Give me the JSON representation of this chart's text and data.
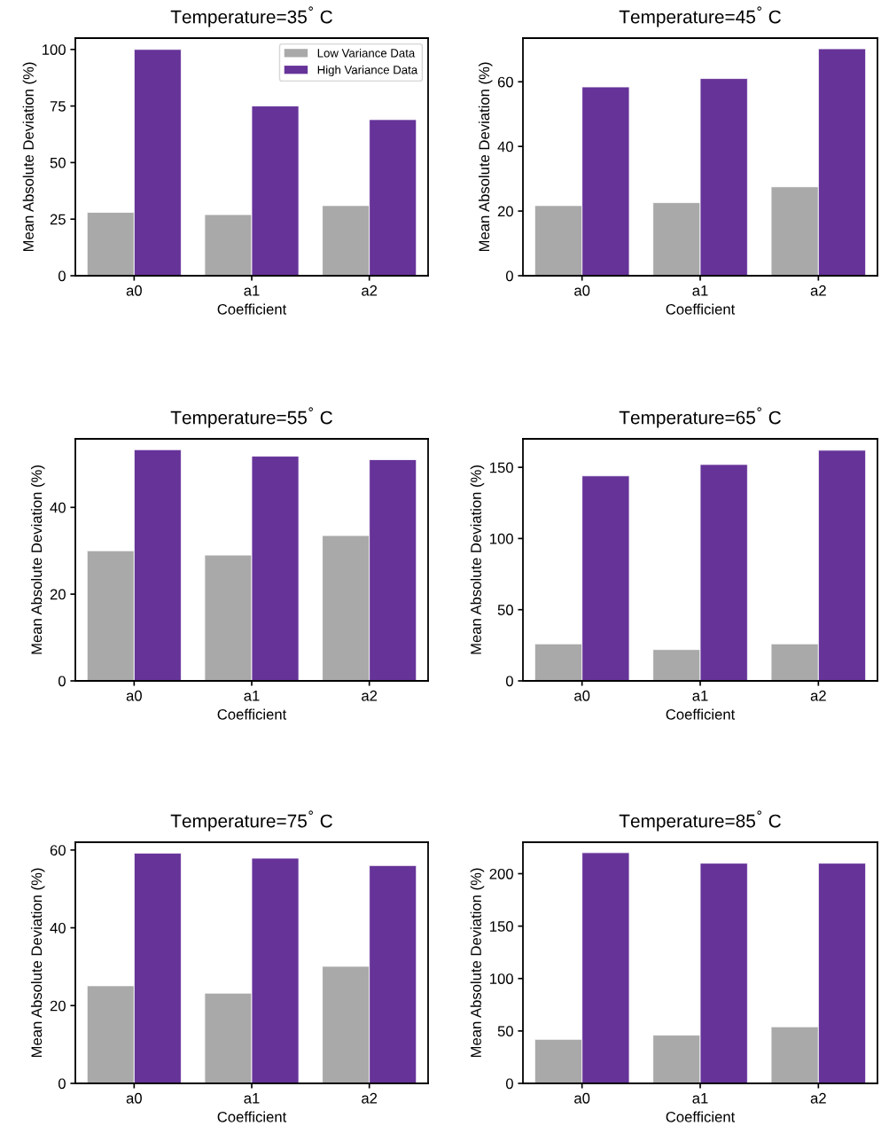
{
  "chart_data": [
    {
      "type": "bar",
      "title": "Temperature=35$^{°}$ C",
      "xlabel": "Coefficient",
      "ylabel": "Mean Absolute Deviation (%)",
      "categories": [
        "a0",
        "a1",
        "a2"
      ],
      "ylim": [
        0,
        105
      ],
      "yticks": [
        0,
        25,
        50,
        75,
        100
      ],
      "legend": "top right",
      "series": [
        {
          "name": "Low Variance Data",
          "color": "#a9a9a9",
          "values": [
            28,
            27,
            31
          ]
        },
        {
          "name": "High Variance Data",
          "color": "#663399",
          "values": [
            100,
            75,
            69
          ]
        }
      ]
    },
    {
      "type": "bar",
      "title": "Temperature=45$^{°}$ C",
      "xlabel": "Coefficient",
      "ylabel": "Mean Absolute Deviation (%)",
      "categories": [
        "a0",
        "a1",
        "a2"
      ],
      "ylim": [
        0,
        73.5
      ],
      "yticks": [
        0,
        20,
        40,
        60
      ],
      "series": [
        {
          "color": "#a9a9a9",
          "values": [
            21.7,
            22.6,
            27.5
          ]
        },
        {
          "color": "#663399",
          "values": [
            58.4,
            61,
            70.2
          ]
        }
      ]
    },
    {
      "type": "bar",
      "title": "Temperature=55$^{°}$ C",
      "xlabel": "Coefficient",
      "ylabel": "Mean Absolute Deviation (%)",
      "categories": [
        "a0",
        "a1",
        "a2"
      ],
      "ylim": [
        0,
        55.8
      ],
      "yticks": [
        0,
        20,
        40
      ],
      "series": [
        {
          "color": "#a9a9a9",
          "values": [
            30,
            29,
            33.5
          ]
        },
        {
          "color": "#663399",
          "values": [
            53.3,
            51.8,
            51
          ]
        }
      ]
    },
    {
      "type": "bar",
      "title": "Temperature=65$^{°}$ C",
      "xlabel": "Coefficient",
      "ylabel": "Mean Absolute Deviation (%)",
      "categories": [
        "a0",
        "a1",
        "a2"
      ],
      "ylim": [
        0,
        170
      ],
      "yticks": [
        0,
        50,
        100,
        150
      ],
      "series": [
        {
          "color": "#a9a9a9",
          "values": [
            26,
            22,
            26
          ]
        },
        {
          "color": "#663399",
          "values": [
            144,
            152,
            162
          ]
        }
      ]
    },
    {
      "type": "bar",
      "title": "Temperature=75$^{°}$ C",
      "xlabel": "Coefficient",
      "ylabel": "Mean Absolute Deviation (%)",
      "categories": [
        "a0",
        "a1",
        "a2"
      ],
      "ylim": [
        0,
        62
      ],
      "yticks": [
        0,
        20,
        40,
        60
      ],
      "series": [
        {
          "color": "#a9a9a9",
          "values": [
            25.1,
            23.2,
            30.1
          ]
        },
        {
          "color": "#663399",
          "values": [
            59.2,
            57.9,
            56
          ]
        }
      ]
    },
    {
      "type": "bar",
      "title": "Temperature=85$^{°}$ C",
      "xlabel": "Coefficient",
      "ylabel": "Mean Absolute Deviation (%)",
      "categories": [
        "a0",
        "a1",
        "a2"
      ],
      "ylim": [
        0,
        230
      ],
      "yticks": [
        0,
        50,
        100,
        150,
        200
      ],
      "series": [
        {
          "color": "#a9a9a9",
          "values": [
            42,
            46,
            54
          ]
        },
        {
          "color": "#663399",
          "values": [
            220,
            210,
            210
          ]
        }
      ]
    }
  ]
}
